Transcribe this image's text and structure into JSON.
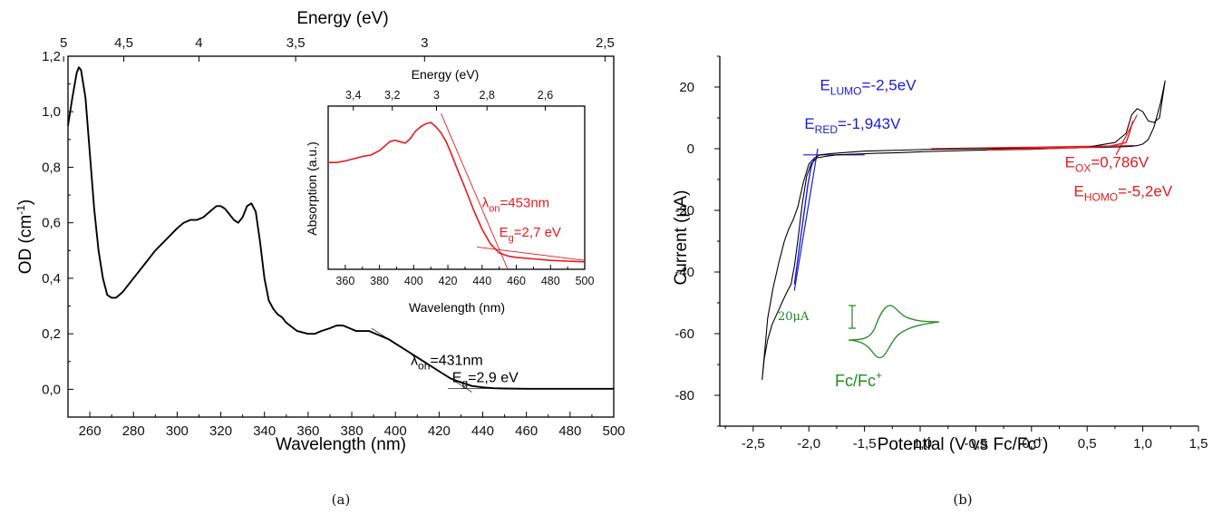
{
  "chart_data": [
    {
      "type": "line",
      "panel_caption": "(a)",
      "xlabel": "Wavelength (nm)",
      "ylabel": "OD (cm",
      "ylabel_sup": "-1",
      "ylabel_end": ")",
      "top_axis_label": "Energy (eV)",
      "xlim": [
        250,
        500
      ],
      "ylim": [
        -0.1,
        1.2
      ],
      "x_ticks": [
        "260",
        "280",
        "300",
        "320",
        "340",
        "360",
        "380",
        "400",
        "420",
        "440",
        "460",
        "480",
        "500"
      ],
      "y_ticks": [
        "0,0",
        "0,2",
        "0,4",
        "0,6",
        "0,8",
        "1,0",
        "1,2"
      ],
      "top_ticks": [
        {
          "label": "5",
          "energy": 5.0
        },
        {
          "label": "4,5",
          "energy": 4.5
        },
        {
          "label": "4",
          "energy": 4.0
        },
        {
          "label": "3,5",
          "energy": 3.5
        },
        {
          "label": "3",
          "energy": 3.0
        },
        {
          "label": "2,5",
          "energy": 2.5
        }
      ],
      "series": [
        {
          "color": "#000000",
          "x": [
            250,
            252,
            254,
            255,
            256,
            258,
            260,
            262,
            264,
            266,
            268,
            270,
            272,
            275,
            280,
            285,
            290,
            295,
            300,
            303,
            306,
            309,
            312,
            315,
            318,
            320,
            322,
            324,
            326,
            328,
            330,
            332,
            334,
            336,
            338,
            340,
            342,
            344,
            346,
            348,
            350,
            355,
            360,
            363,
            366,
            370,
            373,
            376,
            379,
            382,
            385,
            388,
            391,
            394,
            397,
            400,
            405,
            410,
            415,
            420,
            425,
            430,
            435,
            440,
            445,
            450,
            460,
            470,
            480,
            490,
            500
          ],
          "y": [
            0.95,
            1.05,
            1.14,
            1.16,
            1.15,
            1.05,
            0.85,
            0.65,
            0.5,
            0.4,
            0.34,
            0.33,
            0.33,
            0.35,
            0.4,
            0.45,
            0.5,
            0.54,
            0.58,
            0.6,
            0.61,
            0.61,
            0.62,
            0.64,
            0.66,
            0.66,
            0.65,
            0.63,
            0.61,
            0.6,
            0.62,
            0.66,
            0.67,
            0.64,
            0.53,
            0.4,
            0.32,
            0.29,
            0.27,
            0.26,
            0.24,
            0.21,
            0.2,
            0.2,
            0.21,
            0.22,
            0.23,
            0.23,
            0.22,
            0.21,
            0.21,
            0.21,
            0.2,
            0.19,
            0.18,
            0.165,
            0.14,
            0.115,
            0.09,
            0.065,
            0.04,
            0.025,
            0.012,
            0.007,
            0.004,
            0.003,
            0.002,
            0.002,
            0.002,
            0.002,
            0.002
          ]
        }
      ],
      "fit_lines": [
        {
          "color": "#444444",
          "x": [
            389,
            435
          ],
          "y": [
            0.22,
            -0.01
          ]
        },
        {
          "color": "#444444",
          "x": [
            424,
            462
          ],
          "y": [
            0.003,
            0.003
          ]
        }
      ],
      "annotations": [
        {
          "base": "λ",
          "sub": "on",
          "rest": "=431nm",
          "x": 407,
          "y": 0.087,
          "color": "#000000"
        },
        {
          "base": "E",
          "sub": "g",
          "rest": "=2,9 eV",
          "x": 426,
          "y": 0.025,
          "color": "#000000"
        }
      ],
      "inset": {
        "xlabel": "Wavelength (nm)",
        "ylabel": "Absorption (a.u.)",
        "top_axis_label": "Energy (eV)",
        "xlim": [
          350,
          500
        ],
        "ylim": [
          0,
          1.1
        ],
        "x_ticks": [
          "360",
          "380",
          "400",
          "420",
          "440",
          "460",
          "480",
          "500"
        ],
        "top_ticks": [
          {
            "label": "3,4",
            "energy": 3.4
          },
          {
            "label": "3,2",
            "energy": 3.2
          },
          {
            "label": "3",
            "energy": 3.0
          },
          {
            "label": "2,8",
            "energy": 2.8
          },
          {
            "label": "2,6",
            "energy": 2.6
          }
        ],
        "series": [
          {
            "color": "#e8191f",
            "x": [
              350,
              355,
              360,
              365,
              370,
              375,
              380,
              383,
              386,
              389,
              392,
              395,
              398,
              401,
              404,
              407,
              410,
              413,
              416,
              419,
              422,
              425,
              430,
              435,
              440,
              445,
              450,
              455,
              460,
              470,
              480,
              490,
              500
            ],
            "y": [
              0.72,
              0.72,
              0.73,
              0.745,
              0.76,
              0.77,
              0.8,
              0.83,
              0.86,
              0.87,
              0.86,
              0.85,
              0.88,
              0.93,
              0.96,
              0.98,
              0.99,
              0.96,
              0.92,
              0.86,
              0.78,
              0.69,
              0.55,
              0.4,
              0.27,
              0.17,
              0.11,
              0.09,
              0.08,
              0.07,
              0.06,
              0.055,
              0.05
            ]
          }
        ],
        "fit_lines": [
          {
            "color": "#e8191f",
            "x": [
              416,
              455
            ],
            "y": [
              1.05,
              0.0
            ]
          },
          {
            "color": "#e8191f",
            "x": [
              437,
              500
            ],
            "y": [
              0.15,
              0.06
            ]
          }
        ],
        "annotations": [
          {
            "base": "λ",
            "sub": "on",
            "rest": "=453nm",
            "x": 440,
            "y": 0.42,
            "color": "#e8191f"
          },
          {
            "base": "E",
            "sub": "g",
            "rest": "=2,7 eV",
            "x": 450,
            "y": 0.22,
            "color": "#e8191f"
          }
        ]
      }
    },
    {
      "type": "line",
      "panel_caption": "(b)",
      "xlabel": "Potential (V vs Fc/Fc",
      "xlabel_sup": "+",
      "xlabel_end": ")",
      "ylabel": "Current (μA)",
      "xlim": [
        -2.8,
        1.5
      ],
      "ylim": [
        -90,
        30
      ],
      "x_ticks": [
        "-2,5",
        "-2,0",
        "-1,5",
        "-1,0",
        "-0,5",
        "0,0",
        "0,5",
        "1,0",
        "1,5"
      ],
      "x_tick_values": [
        -2.5,
        -2.0,
        -1.5,
        -1.0,
        -0.5,
        0.0,
        0.5,
        1.0,
        1.5
      ],
      "y_ticks": [
        "-80",
        "-60",
        "-40",
        "-20",
        "0",
        "20"
      ],
      "y_tick_values": [
        -80,
        -60,
        -40,
        -20,
        0,
        20
      ],
      "series": [
        {
          "color": "#000000",
          "x": [
            -2.42,
            -2.4,
            -2.37,
            -2.33,
            -2.28,
            -2.23,
            -2.19,
            -2.16,
            -2.13,
            -2.1,
            -2.06,
            -2.02,
            -1.98,
            -1.93,
            -1.85,
            -1.75,
            -1.6,
            -1.4,
            -1.2,
            -1.0,
            -0.5,
            0.0,
            0.5,
            0.75,
            0.85,
            0.9,
            0.95,
            1.0,
            1.05,
            1.1,
            1.15,
            1.2,
            1.16,
            1.1,
            1.05,
            1.0,
            0.95,
            0.9,
            0.8,
            0.6,
            0.3,
            0.0,
            -0.5,
            -1.0,
            -1.5,
            -1.7,
            -1.8,
            -1.9,
            -1.95,
            -2.0,
            -2.05,
            -2.1,
            -2.14,
            -2.18,
            -2.22,
            -2.27,
            -2.32,
            -2.37,
            -2.42
          ],
          "y": [
            -75,
            -68,
            -62,
            -57,
            -53,
            -49,
            -46,
            -44,
            -38,
            -30,
            -18,
            -9,
            -5,
            -3,
            -2.5,
            -2,
            -1.8,
            -1.5,
            -1.3,
            -1,
            -0.5,
            -0.2,
            0.5,
            2,
            5,
            11,
            13,
            12,
            9,
            8.5,
            10,
            22,
            15,
            7,
            3,
            1.5,
            1,
            0.8,
            0.6,
            0.4,
            0.3,
            0.1,
            0,
            -0.3,
            -0.8,
            -1.3,
            -1.6,
            -2,
            -3,
            -5,
            -11,
            -19,
            -23,
            -26,
            -30,
            -37,
            -45,
            -55,
            -75
          ]
        },
        {
          "color": "#1a1adb",
          "x": [
            -2.13,
            -2.1,
            -2.07,
            -2.04,
            -2.01,
            -1.98,
            -1.95
          ],
          "y": [
            -44,
            -36,
            -28,
            -20,
            -12,
            -6,
            -3
          ]
        },
        {
          "color": "#e8191f",
          "x": [
            -0.4,
            0.0,
            0.4,
            0.7,
            0.85,
            0.88,
            0.91
          ],
          "y": [
            -0.4,
            -0.1,
            0.3,
            0.8,
            2,
            5,
            9
          ]
        }
      ],
      "fit_lines": [
        {
          "color": "#1a1adb",
          "x": [
            -2.13,
            -1.92
          ],
          "y": [
            -46,
            0
          ]
        },
        {
          "color": "#1a1adb",
          "x": [
            -2.05,
            -1.5
          ],
          "y": [
            -2,
            -2
          ]
        },
        {
          "color": "#e8191f",
          "x": [
            -0.9,
            0.92
          ],
          "y": [
            0,
            1
          ]
        },
        {
          "color": "#e8191f",
          "x": [
            0.76,
            0.95
          ],
          "y": [
            -2,
            11
          ]
        }
      ],
      "annotations": [
        {
          "base": "E",
          "sub": "LUMO",
          "rest": "=-2,5eV",
          "x": -1.9,
          "y": 19,
          "color": "#1a1adb"
        },
        {
          "base": "E",
          "sub": "RED",
          "rest": "=-1,943V",
          "x": -2.04,
          "y": 6.5,
          "color": "#1a1adb"
        },
        {
          "base": "E",
          "sub": "OX",
          "rest": "=0,786V",
          "x": 0.3,
          "y": -6,
          "color": "#e8191f"
        },
        {
          "base": "E",
          "sub": "HOMO",
          "rest": "=-5,2eV",
          "x": 0.38,
          "y": -15.5,
          "color": "#e8191f"
        }
      ],
      "ferrocene_inset": {
        "color": "#1e8a1e",
        "scale_label": "20μA",
        "label": "Fc/Fc",
        "label_sup": "+"
      }
    }
  ]
}
